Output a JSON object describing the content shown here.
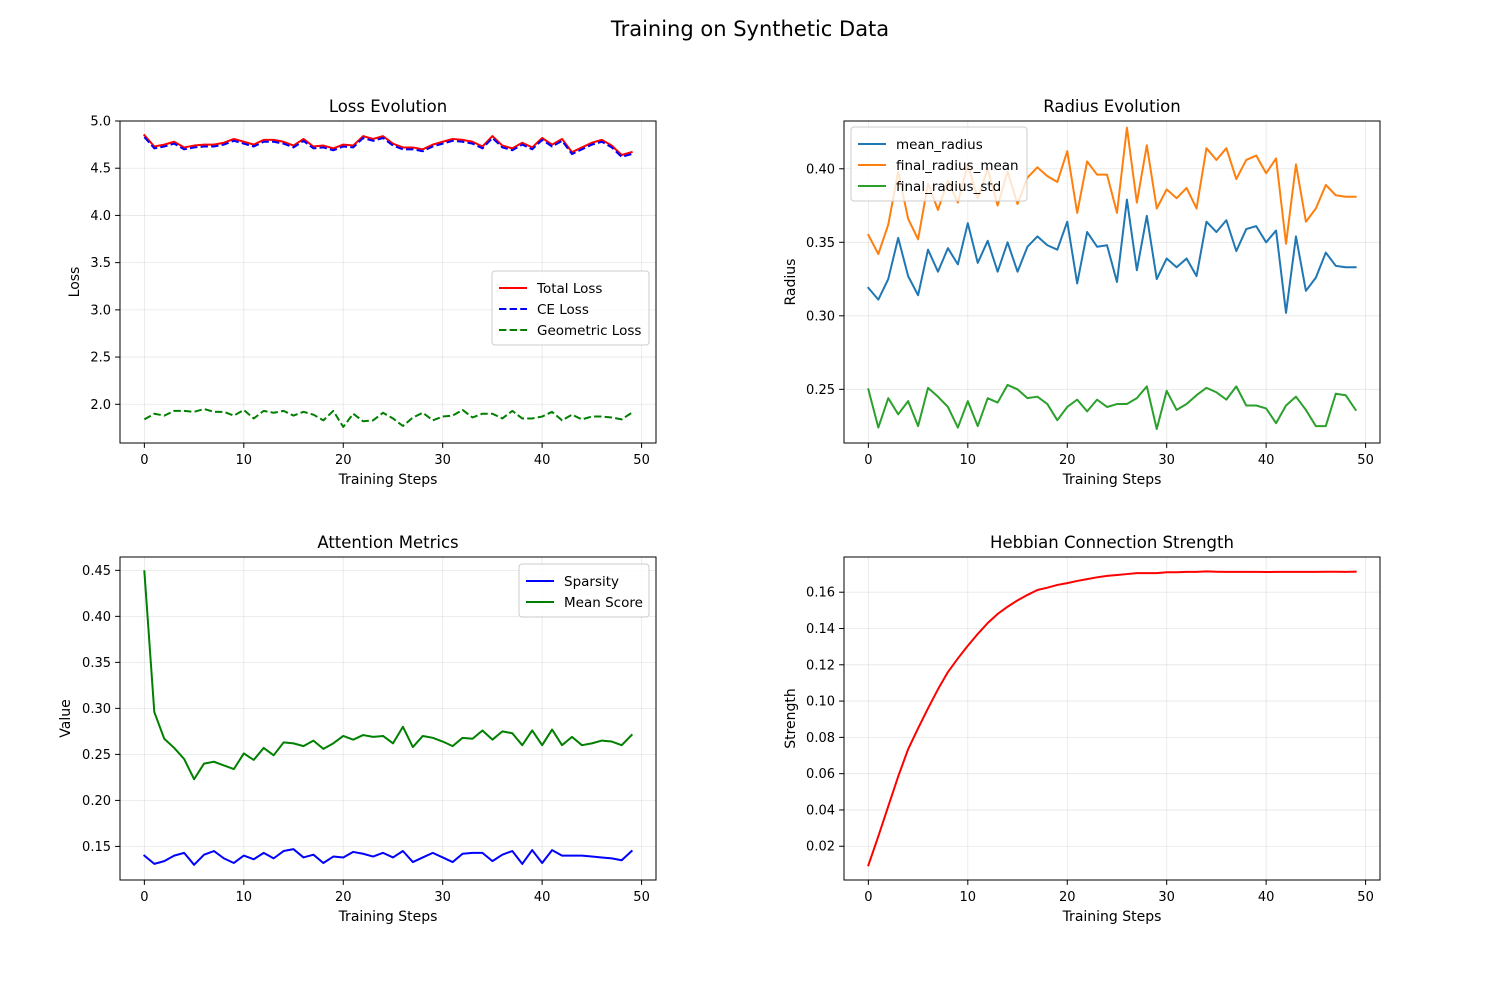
{
  "figure": {
    "title": "Training on Synthetic Data"
  },
  "chart_data": [
    {
      "id": "loss",
      "type": "line",
      "title": "Loss Evolution",
      "xlabel": "Training Steps",
      "ylabel": "Loss",
      "xlim": [
        -2.45,
        51.45
      ],
      "ylim": [
        1.59,
        5.0
      ],
      "xticks": [
        0,
        10,
        20,
        30,
        40,
        50
      ],
      "yticks": [
        2.0,
        2.5,
        3.0,
        3.5,
        4.0,
        4.5,
        5.0
      ],
      "ytick_decimals": 1,
      "legend": "center-right",
      "grid": true,
      "x": [
        0,
        1,
        2,
        3,
        4,
        5,
        6,
        7,
        8,
        9,
        10,
        11,
        12,
        13,
        14,
        15,
        16,
        17,
        18,
        19,
        20,
        21,
        22,
        23,
        24,
        25,
        26,
        27,
        28,
        29,
        30,
        31,
        32,
        33,
        34,
        35,
        36,
        37,
        38,
        39,
        40,
        41,
        42,
        43,
        44,
        45,
        46,
        47,
        48,
        49
      ],
      "series": [
        {
          "name": "Total Loss",
          "color": "#ff0000",
          "dash": "solid",
          "values": [
            4.85,
            4.73,
            4.75,
            4.78,
            4.72,
            4.74,
            4.75,
            4.75,
            4.77,
            4.81,
            4.78,
            4.75,
            4.8,
            4.8,
            4.78,
            4.74,
            4.81,
            4.73,
            4.74,
            4.71,
            4.75,
            4.74,
            4.84,
            4.81,
            4.84,
            4.76,
            4.72,
            4.72,
            4.7,
            4.75,
            4.78,
            4.81,
            4.8,
            4.78,
            4.73,
            4.84,
            4.74,
            4.71,
            4.77,
            4.72,
            4.82,
            4.75,
            4.81,
            4.67,
            4.72,
            4.77,
            4.8,
            4.74,
            4.64,
            4.67
          ]
        },
        {
          "name": "CE Loss",
          "color": "#0000ff",
          "dash": "dashed",
          "values": [
            4.83,
            4.71,
            4.73,
            4.76,
            4.7,
            4.72,
            4.73,
            4.73,
            4.75,
            4.79,
            4.76,
            4.73,
            4.78,
            4.78,
            4.76,
            4.72,
            4.79,
            4.71,
            4.72,
            4.69,
            4.73,
            4.72,
            4.82,
            4.79,
            4.82,
            4.74,
            4.7,
            4.7,
            4.68,
            4.73,
            4.76,
            4.79,
            4.78,
            4.76,
            4.71,
            4.82,
            4.72,
            4.69,
            4.75,
            4.7,
            4.8,
            4.73,
            4.79,
            4.65,
            4.7,
            4.75,
            4.78,
            4.72,
            4.62,
            4.65
          ]
        },
        {
          "name": "Geometric Loss",
          "color": "#008000",
          "dash": "dashed",
          "values": [
            1.84,
            1.9,
            1.88,
            1.93,
            1.93,
            1.92,
            1.95,
            1.92,
            1.92,
            1.88,
            1.94,
            1.85,
            1.93,
            1.91,
            1.93,
            1.88,
            1.92,
            1.89,
            1.83,
            1.93,
            1.76,
            1.9,
            1.82,
            1.83,
            1.91,
            1.85,
            1.77,
            1.86,
            1.91,
            1.83,
            1.87,
            1.88,
            1.94,
            1.86,
            1.9,
            1.9,
            1.85,
            1.93,
            1.85,
            1.85,
            1.87,
            1.92,
            1.83,
            1.89,
            1.84,
            1.87,
            1.87,
            1.86,
            1.84,
            1.91
          ]
        }
      ]
    },
    {
      "id": "radius",
      "type": "line",
      "title": "Radius Evolution",
      "xlabel": "Training Steps",
      "ylabel": "Radius",
      "xlim": [
        -2.45,
        51.45
      ],
      "ylim": [
        0.2135,
        0.4325
      ],
      "xticks": [
        0,
        10,
        20,
        30,
        40,
        50
      ],
      "yticks": [
        0.25,
        0.3,
        0.35,
        0.4
      ],
      "ytick_decimals": 2,
      "legend": "upper-left",
      "grid": true,
      "x": [
        0,
        1,
        2,
        3,
        4,
        5,
        6,
        7,
        8,
        9,
        10,
        11,
        12,
        13,
        14,
        15,
        16,
        17,
        18,
        19,
        20,
        21,
        22,
        23,
        24,
        25,
        26,
        27,
        28,
        29,
        30,
        31,
        32,
        33,
        34,
        35,
        36,
        37,
        38,
        39,
        40,
        41,
        42,
        43,
        44,
        45,
        46,
        47,
        48,
        49
      ],
      "series": [
        {
          "name": "mean_radius",
          "color": "#1f77b4",
          "dash": "solid",
          "values": [
            0.319,
            0.311,
            0.325,
            0.353,
            0.327,
            0.314,
            0.345,
            0.33,
            0.346,
            0.335,
            0.363,
            0.336,
            0.351,
            0.33,
            0.35,
            0.33,
            0.347,
            0.354,
            0.348,
            0.345,
            0.364,
            0.322,
            0.357,
            0.347,
            0.348,
            0.323,
            0.379,
            0.331,
            0.368,
            0.325,
            0.339,
            0.333,
            0.339,
            0.327,
            0.364,
            0.357,
            0.365,
            0.344,
            0.359,
            0.361,
            0.35,
            0.358,
            0.302,
            0.354,
            0.317,
            0.326,
            0.343,
            0.334,
            0.333,
            0.333
          ]
        },
        {
          "name": "final_radius_mean",
          "color": "#ff7f0e",
          "dash": "solid",
          "values": [
            0.355,
            0.342,
            0.362,
            0.398,
            0.366,
            0.352,
            0.39,
            0.372,
            0.392,
            0.377,
            0.403,
            0.38,
            0.4,
            0.375,
            0.398,
            0.376,
            0.394,
            0.401,
            0.395,
            0.391,
            0.412,
            0.37,
            0.405,
            0.396,
            0.396,
            0.37,
            0.428,
            0.377,
            0.416,
            0.373,
            0.386,
            0.38,
            0.387,
            0.373,
            0.414,
            0.406,
            0.414,
            0.393,
            0.406,
            0.409,
            0.397,
            0.407,
            0.349,
            0.403,
            0.364,
            0.373,
            0.389,
            0.382,
            0.381,
            0.381
          ]
        },
        {
          "name": "final_radius_std",
          "color": "#2ca02c",
          "dash": "solid",
          "values": [
            0.25,
            0.224,
            0.244,
            0.233,
            0.242,
            0.225,
            0.251,
            0.245,
            0.238,
            0.224,
            0.242,
            0.225,
            0.244,
            0.241,
            0.253,
            0.25,
            0.244,
            0.245,
            0.24,
            0.229,
            0.238,
            0.243,
            0.235,
            0.243,
            0.238,
            0.24,
            0.24,
            0.244,
            0.252,
            0.223,
            0.249,
            0.236,
            0.24,
            0.246,
            0.251,
            0.248,
            0.243,
            0.252,
            0.239,
            0.239,
            0.237,
            0.227,
            0.239,
            0.245,
            0.236,
            0.225,
            0.225,
            0.247,
            0.246,
            0.236
          ]
        }
      ]
    },
    {
      "id": "attention",
      "type": "line",
      "title": "Attention Metrics",
      "xlabel": "Training Steps",
      "ylabel": "Value",
      "xlim": [
        -2.45,
        51.45
      ],
      "ylim": [
        0.1135,
        0.4645
      ],
      "xticks": [
        0,
        10,
        20,
        30,
        40,
        50
      ],
      "yticks": [
        0.15,
        0.2,
        0.25,
        0.3,
        0.35,
        0.4,
        0.45
      ],
      "ytick_decimals": 2,
      "legend": "upper-right",
      "grid": true,
      "x": [
        0,
        1,
        2,
        3,
        4,
        5,
        6,
        7,
        8,
        9,
        10,
        11,
        12,
        13,
        14,
        15,
        16,
        17,
        18,
        19,
        20,
        21,
        22,
        23,
        24,
        25,
        26,
        27,
        28,
        29,
        30,
        31,
        32,
        33,
        34,
        35,
        36,
        37,
        38,
        39,
        40,
        41,
        42,
        43,
        44,
        45,
        46,
        47,
        48,
        49
      ],
      "series": [
        {
          "name": "Sparsity",
          "color": "#0000ff",
          "dash": "solid",
          "values": [
            0.14,
            0.131,
            0.134,
            0.14,
            0.143,
            0.13,
            0.141,
            0.145,
            0.137,
            0.132,
            0.14,
            0.136,
            0.143,
            0.137,
            0.145,
            0.147,
            0.138,
            0.141,
            0.132,
            0.139,
            0.138,
            0.144,
            0.142,
            0.139,
            0.143,
            0.138,
            0.145,
            0.133,
            0.138,
            0.143,
            0.138,
            0.133,
            0.142,
            0.143,
            0.143,
            0.134,
            0.141,
            0.145,
            0.131,
            0.146,
            0.132,
            0.146,
            0.14,
            0.14,
            0.14,
            0.139,
            0.138,
            0.137,
            0.135,
            0.145
          ]
        },
        {
          "name": "Mean Score",
          "color": "#008000",
          "dash": "solid",
          "values": [
            0.449,
            0.296,
            0.267,
            0.257,
            0.245,
            0.223,
            0.24,
            0.242,
            0.238,
            0.234,
            0.251,
            0.244,
            0.257,
            0.249,
            0.263,
            0.262,
            0.259,
            0.265,
            0.256,
            0.262,
            0.27,
            0.266,
            0.271,
            0.269,
            0.27,
            0.262,
            0.28,
            0.258,
            0.27,
            0.268,
            0.264,
            0.259,
            0.268,
            0.267,
            0.276,
            0.266,
            0.275,
            0.273,
            0.26,
            0.276,
            0.26,
            0.277,
            0.26,
            0.269,
            0.26,
            0.262,
            0.265,
            0.264,
            0.26,
            0.271
          ]
        }
      ]
    },
    {
      "id": "hebbian",
      "type": "line",
      "title": "Hebbian Connection Strength",
      "xlabel": "Training Steps",
      "ylabel": "Strength",
      "xlim": [
        -2.45,
        51.45
      ],
      "ylim": [
        0.0014,
        0.1794
      ],
      "xticks": [
        0,
        10,
        20,
        30,
        40,
        50
      ],
      "yticks": [
        0.02,
        0.04,
        0.06,
        0.08,
        0.1,
        0.12,
        0.14,
        0.16
      ],
      "ytick_decimals": 2,
      "legend": "none",
      "grid": true,
      "x": [
        0,
        1,
        2,
        3,
        4,
        5,
        6,
        7,
        8,
        9,
        10,
        11,
        12,
        13,
        14,
        15,
        16,
        17,
        18,
        19,
        20,
        21,
        22,
        23,
        24,
        25,
        26,
        27,
        28,
        29,
        30,
        31,
        32,
        33,
        34,
        35,
        36,
        37,
        38,
        39,
        40,
        41,
        42,
        43,
        44,
        45,
        46,
        47,
        48,
        49
      ],
      "series": [
        {
          "name": "",
          "color": "#ff0000",
          "dash": "solid",
          "values": [
            0.0095,
            0.0255,
            0.042,
            0.0585,
            0.0735,
            0.085,
            0.096,
            0.1065,
            0.116,
            0.1235,
            0.1305,
            0.137,
            0.143,
            0.148,
            0.152,
            0.1555,
            0.1585,
            0.1612,
            0.1625,
            0.164,
            0.165,
            0.1662,
            0.1672,
            0.1682,
            0.169,
            0.1695,
            0.17,
            0.1705,
            0.1705,
            0.1705,
            0.171,
            0.171,
            0.1712,
            0.1712,
            0.1715,
            0.1713,
            0.1712,
            0.1712,
            0.1712,
            0.1712,
            0.1711,
            0.1712,
            0.1712,
            0.1712,
            0.1712,
            0.1712,
            0.1713,
            0.1713,
            0.1712,
            0.1713
          ]
        }
      ]
    }
  ]
}
